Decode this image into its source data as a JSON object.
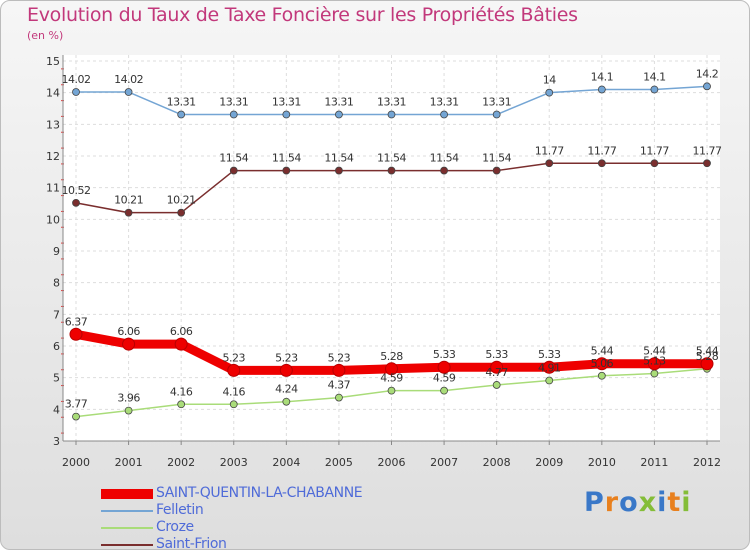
{
  "title": "Evolution du Taux de Taxe Foncière sur les Propriétés Bâties",
  "unit": "(en %)",
  "brand": {
    "text": "Proxiti",
    "colors": [
      "#3a78c8",
      "#e8801e",
      "#3a78c8",
      "#84bd38",
      "#3a78c8",
      "#e8801e",
      "#84bd38"
    ]
  },
  "chart_data": {
    "type": "line",
    "title": "Evolution du Taux de Taxe Foncière sur les Propriétés Bâties",
    "ylabel": "(en %)",
    "xlabel": "",
    "x": [
      "2000",
      "2001",
      "2002",
      "2003",
      "2004",
      "2005",
      "2006",
      "2007",
      "2008",
      "2009",
      "2010",
      "2011",
      "2012"
    ],
    "ylim": [
      3,
      15
    ],
    "yticks": [
      "3",
      "4",
      "5",
      "6",
      "7",
      "8",
      "9",
      "10",
      "11",
      "12",
      "13",
      "14",
      "15"
    ],
    "grid": true,
    "legend": "bottom-left",
    "series": [
      {
        "name": "SAINT-QUENTIN-LA-CHABANNE",
        "color": "#ee0000",
        "values": [
          6.37,
          6.06,
          6.06,
          5.23,
          5.23,
          5.23,
          5.28,
          5.33,
          5.33,
          5.33,
          5.44,
          5.44,
          5.44
        ],
        "labels": [
          "6.37",
          "6.06",
          "6.06",
          "5.23",
          "5.23",
          "5.23",
          "5.28",
          "5.33",
          "5.33",
          "5.33",
          "5.44",
          "5.44",
          "5.44"
        ]
      },
      {
        "name": "Felletin",
        "color": "#74a5d4",
        "values": [
          14.02,
          14.02,
          13.31,
          13.31,
          13.31,
          13.31,
          13.31,
          13.31,
          13.31,
          14,
          14.1,
          14.1,
          14.2
        ],
        "labels": [
          "14.02",
          "14.02",
          "13.31",
          "13.31",
          "13.31",
          "13.31",
          "13.31",
          "13.31",
          "13.31",
          "14",
          "14.1",
          "14.1",
          "14.2"
        ]
      },
      {
        "name": "Croze",
        "color": "#a9dc79",
        "values": [
          3.77,
          3.96,
          4.16,
          4.16,
          4.24,
          4.37,
          4.59,
          4.59,
          4.77,
          4.91,
          5.06,
          5.13,
          5.28
        ],
        "labels": [
          "3.77",
          "3.96",
          "4.16",
          "4.16",
          "4.24",
          "4.37",
          "4.59",
          "4.59",
          "4.77",
          "4.91",
          "5.06",
          "5.13",
          "5.28"
        ]
      },
      {
        "name": "Saint-Frion",
        "color": "#7a2e2e",
        "values": [
          10.52,
          10.21,
          10.21,
          11.54,
          11.54,
          11.54,
          11.54,
          11.54,
          11.54,
          11.77,
          11.77,
          11.77,
          11.77
        ],
        "labels": [
          "10.52",
          "10.21",
          "10.21",
          "11.54",
          "11.54",
          "11.54",
          "11.54",
          "11.54",
          "11.54",
          "11.77",
          "11.77",
          "11.77",
          "11.77"
        ]
      }
    ]
  }
}
